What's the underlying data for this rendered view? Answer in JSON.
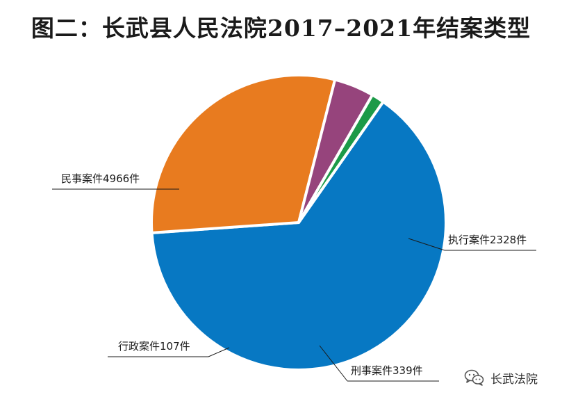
{
  "chart_data": {
    "type": "pie",
    "title": "图二：长武县人民法院2017–2021年结案类型",
    "slices": [
      {
        "category": "民事案件",
        "value": 4966,
        "label": "民事案件4966件",
        "color": "#0778c3"
      },
      {
        "category": "执行案件",
        "value": 2328,
        "label": "执行案件2328件",
        "color": "#e87b1f"
      },
      {
        "category": "刑事案件",
        "value": 339,
        "label": "刑事案件339件",
        "color": "#96447c"
      },
      {
        "category": "行政案件",
        "value": 107,
        "label": "行政案件107件",
        "color": "#1c9a48"
      }
    ]
  },
  "watermark": {
    "icon": "wechat-icon",
    "text": "长武法院"
  }
}
